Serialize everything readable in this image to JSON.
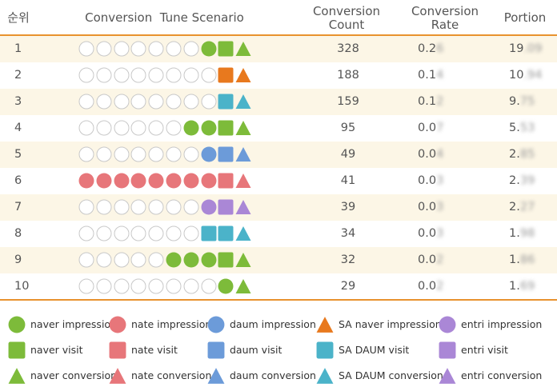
{
  "colors": {
    "naver": "#7dbb3a",
    "nate": "#e7767a",
    "daum": "#6c9bd9",
    "sa_naver": "#e8791e",
    "sa_daum": "#4bb3c9",
    "entri": "#aa87d6",
    "empty": "#c8c8c8",
    "accent": "#e8922e"
  },
  "headers": {
    "rank": "순위",
    "scenario": "Conversion  Tune Scenario",
    "count_line1": "Conversion",
    "count_line2": "Count",
    "rate_line1": "Conversion",
    "rate_line2": "Rate",
    "portion": "Portion"
  },
  "rows": [
    {
      "rank": "1",
      "count": "328",
      "rate": "0.2",
      "rate_hidden": "6",
      "portion": "19",
      "portion_hidden": ".09",
      "shapes": [
        "e",
        "e",
        "e",
        "e",
        "e",
        "e",
        "e",
        "naver-c",
        "naver-s",
        "naver-t"
      ]
    },
    {
      "rank": "2",
      "count": "188",
      "rate": "0.1",
      "rate_hidden": "4",
      "portion": "10",
      "portion_hidden": ".94",
      "shapes": [
        "e",
        "e",
        "e",
        "e",
        "e",
        "e",
        "e",
        "e",
        "sa_naver-s",
        "sa_naver-t"
      ]
    },
    {
      "rank": "3",
      "count": "159",
      "rate": "0.1",
      "rate_hidden": "2",
      "portion": "9.",
      "portion_hidden": "75",
      "shapes": [
        "e",
        "e",
        "e",
        "e",
        "e",
        "e",
        "e",
        "e",
        "sa_daum-s",
        "sa_daum-t"
      ]
    },
    {
      "rank": "4",
      "count": "95",
      "rate": "0.0",
      "rate_hidden": "7",
      "portion": "5.",
      "portion_hidden": "53",
      "shapes": [
        "e",
        "e",
        "e",
        "e",
        "e",
        "e",
        "naver-c",
        "naver-c",
        "naver-s",
        "naver-t"
      ]
    },
    {
      "rank": "5",
      "count": "49",
      "rate": "0.0",
      "rate_hidden": "4",
      "portion": "2.",
      "portion_hidden": "85",
      "shapes": [
        "e",
        "e",
        "e",
        "e",
        "e",
        "e",
        "e",
        "daum-c",
        "daum-s",
        "daum-t"
      ]
    },
    {
      "rank": "6",
      "count": "41",
      "rate": "0.0",
      "rate_hidden": "3",
      "portion": "2.",
      "portion_hidden": "39",
      "shapes": [
        "nate-c",
        "nate-c",
        "nate-c",
        "nate-c",
        "nate-c",
        "nate-c",
        "nate-c",
        "nate-c",
        "nate-s",
        "nate-t"
      ]
    },
    {
      "rank": "7",
      "count": "39",
      "rate": "0.0",
      "rate_hidden": "3",
      "portion": "2.",
      "portion_hidden": "27",
      "shapes": [
        "e",
        "e",
        "e",
        "e",
        "e",
        "e",
        "e",
        "entri-c",
        "entri-s",
        "entri-t"
      ]
    },
    {
      "rank": "8",
      "count": "34",
      "rate": "0.0",
      "rate_hidden": "3",
      "portion": "1.",
      "portion_hidden": "98",
      "shapes": [
        "e",
        "e",
        "e",
        "e",
        "e",
        "e",
        "e",
        "sa_daum-s",
        "sa_daum-s",
        "sa_daum-t"
      ]
    },
    {
      "rank": "9",
      "count": "32",
      "rate": "0.0",
      "rate_hidden": "2",
      "portion": "1.",
      "portion_hidden": "86",
      "shapes": [
        "e",
        "e",
        "e",
        "e",
        "e",
        "naver-c",
        "naver-c",
        "naver-c",
        "naver-s",
        "naver-t"
      ]
    },
    {
      "rank": "10",
      "count": "29",
      "rate": "0.0",
      "rate_hidden": "2",
      "portion": "1.",
      "portion_hidden": "69",
      "shapes": [
        "e",
        "e",
        "e",
        "e",
        "e",
        "e",
        "e",
        "e",
        "naver-c",
        "naver-t"
      ]
    }
  ],
  "legend": [
    [
      {
        "shape": "naver-c",
        "label": "naver impression"
      },
      {
        "shape": "naver-s",
        "label": "naver visit"
      },
      {
        "shape": "naver-t",
        "label": "naver conversion"
      }
    ],
    [
      {
        "shape": "nate-c",
        "label": "nate impression"
      },
      {
        "shape": "nate-s",
        "label": "nate visit"
      },
      {
        "shape": "nate-t",
        "label": "nate conversion"
      }
    ],
    [
      {
        "shape": "daum-c",
        "label": "daum impression"
      },
      {
        "shape": "daum-s",
        "label": "daum visit"
      },
      {
        "shape": "daum-t",
        "label": "daum conversion"
      }
    ],
    [
      {
        "shape": "sa_naver-t",
        "label": "SA naver impression"
      },
      {
        "shape": "sa_daum-s",
        "label": "SA DAUM visit"
      },
      {
        "shape": "sa_daum-t",
        "label": "SA DAUM conversion"
      }
    ],
    [
      {
        "shape": "entri-c",
        "label": "entri impression"
      },
      {
        "shape": "entri-s",
        "label": "entri  visit"
      },
      {
        "shape": "entri-t",
        "label": "entri  conversion"
      }
    ]
  ]
}
